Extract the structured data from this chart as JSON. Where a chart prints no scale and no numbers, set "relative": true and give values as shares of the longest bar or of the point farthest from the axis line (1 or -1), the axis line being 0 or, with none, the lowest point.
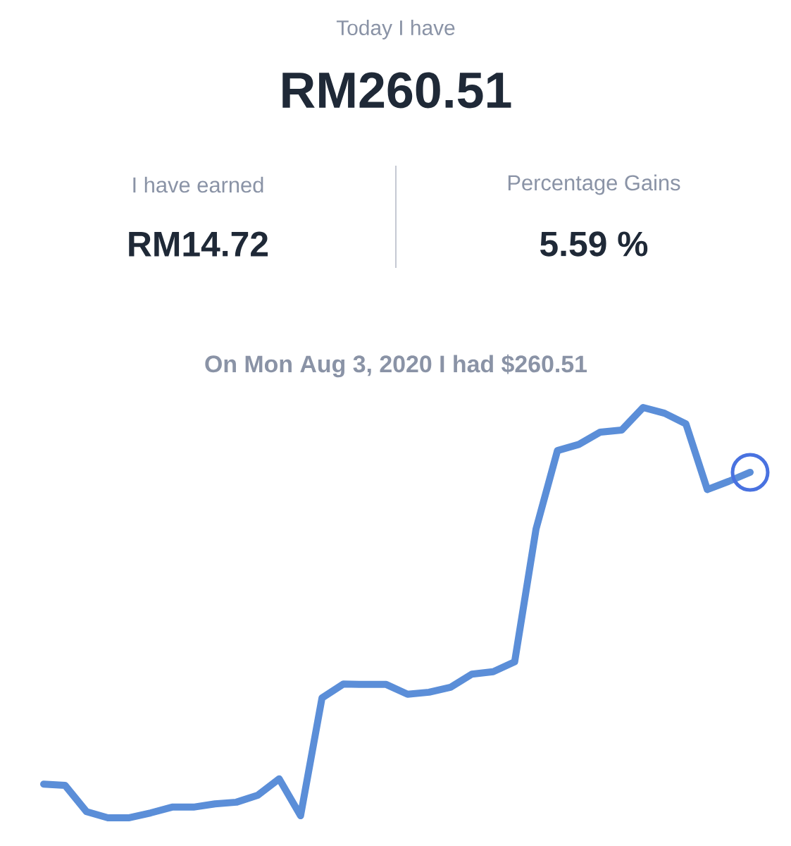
{
  "chart_data": {
    "type": "line",
    "title": "On Mon Aug 3, 2020 I had $260.51",
    "annotations": [
      "Today I have",
      "RM260.51",
      "I have earned",
      "RM14.72",
      "Percentage Gains",
      "5.59 %"
    ],
    "relative": true,
    "tick_labels": false,
    "categories": [
      null,
      null,
      null,
      null,
      null,
      null,
      null,
      null,
      null,
      null,
      null,
      null,
      null,
      null,
      null,
      null,
      null,
      null,
      null,
      null,
      null,
      null,
      null,
      null,
      null,
      null,
      null,
      null,
      null,
      null,
      null,
      null,
      null,
      null
    ],
    "series": [
      {
        "color": "#5b8ed8",
        "values": [
          0.082,
          0.079,
          0.015,
          0,
          0,
          0.012,
          0.026,
          0.026,
          0.034,
          0.038,
          0.055,
          0.095,
          0.005,
          0.292,
          0.326,
          0.325,
          0.325,
          0.301,
          0.306,
          0.318,
          0.35,
          0.356,
          0.38,
          0.704,
          0.895,
          0.91,
          0.94,
          0.945,
          1.0,
          0.986,
          0.96,
          0.8,
          0.82,
          0.842
        ]
      }
    ]
  }
}
